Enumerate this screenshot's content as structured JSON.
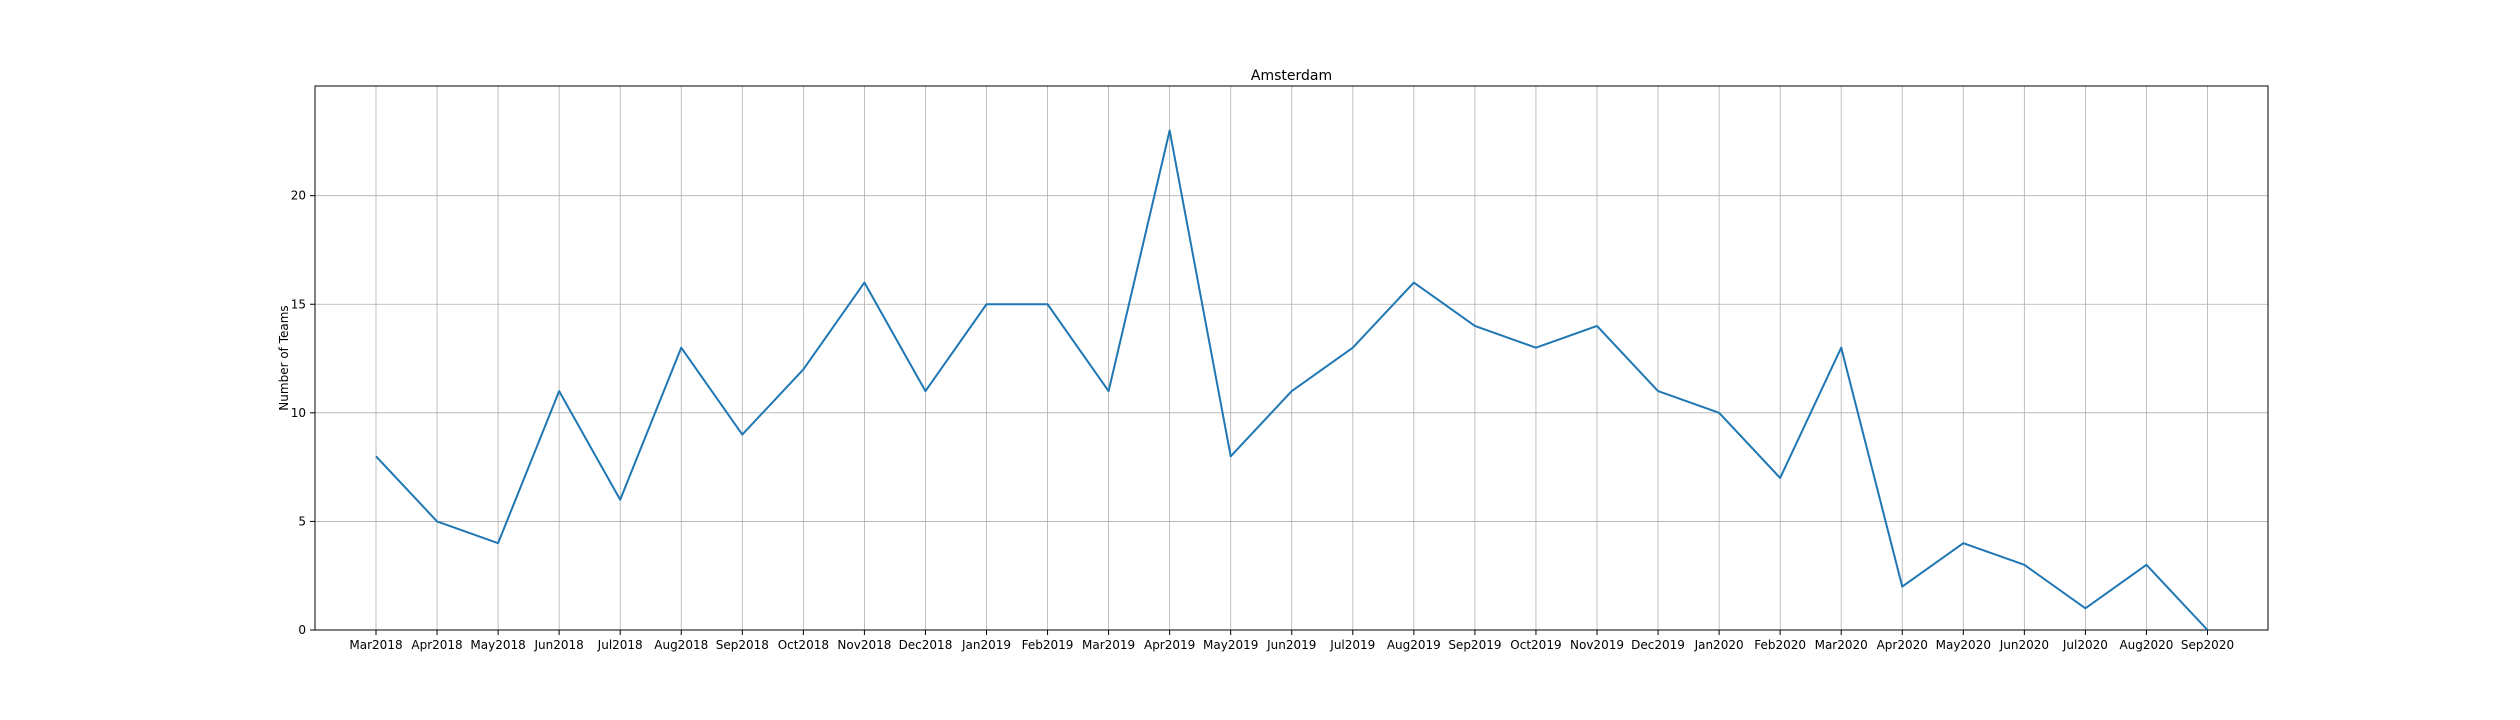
{
  "chart_data": {
    "type": "line",
    "title": "Amsterdam",
    "xlabel": "",
    "ylabel": "Number of Teams",
    "categories": [
      "Mar2018",
      "Apr2018",
      "May2018",
      "Jun2018",
      "Jul2018",
      "Aug2018",
      "Sep2018",
      "Oct2018",
      "Nov2018",
      "Dec2018",
      "Jan2019",
      "Feb2019",
      "Mar2019",
      "Apr2019",
      "May2019",
      "Jun2019",
      "Jul2019",
      "Aug2019",
      "Sep2019",
      "Oct2019",
      "Nov2019",
      "Dec2019",
      "Jan2020",
      "Feb2020",
      "Mar2020",
      "Apr2020",
      "May2020",
      "Jun2020",
      "Jul2020",
      "Aug2020",
      "Sep2020"
    ],
    "values": [
      8,
      5,
      4,
      11,
      6,
      13,
      9,
      12,
      16,
      11,
      15,
      15,
      11,
      23,
      8,
      11,
      13,
      16,
      14,
      13,
      14,
      11,
      10,
      7,
      13,
      2,
      4,
      3,
      1,
      3,
      0
    ],
    "ylim": [
      0,
      25.05
    ],
    "yticks": [
      0,
      5,
      10,
      15,
      20
    ],
    "grid": true,
    "line_color": "#1f77b4"
  }
}
